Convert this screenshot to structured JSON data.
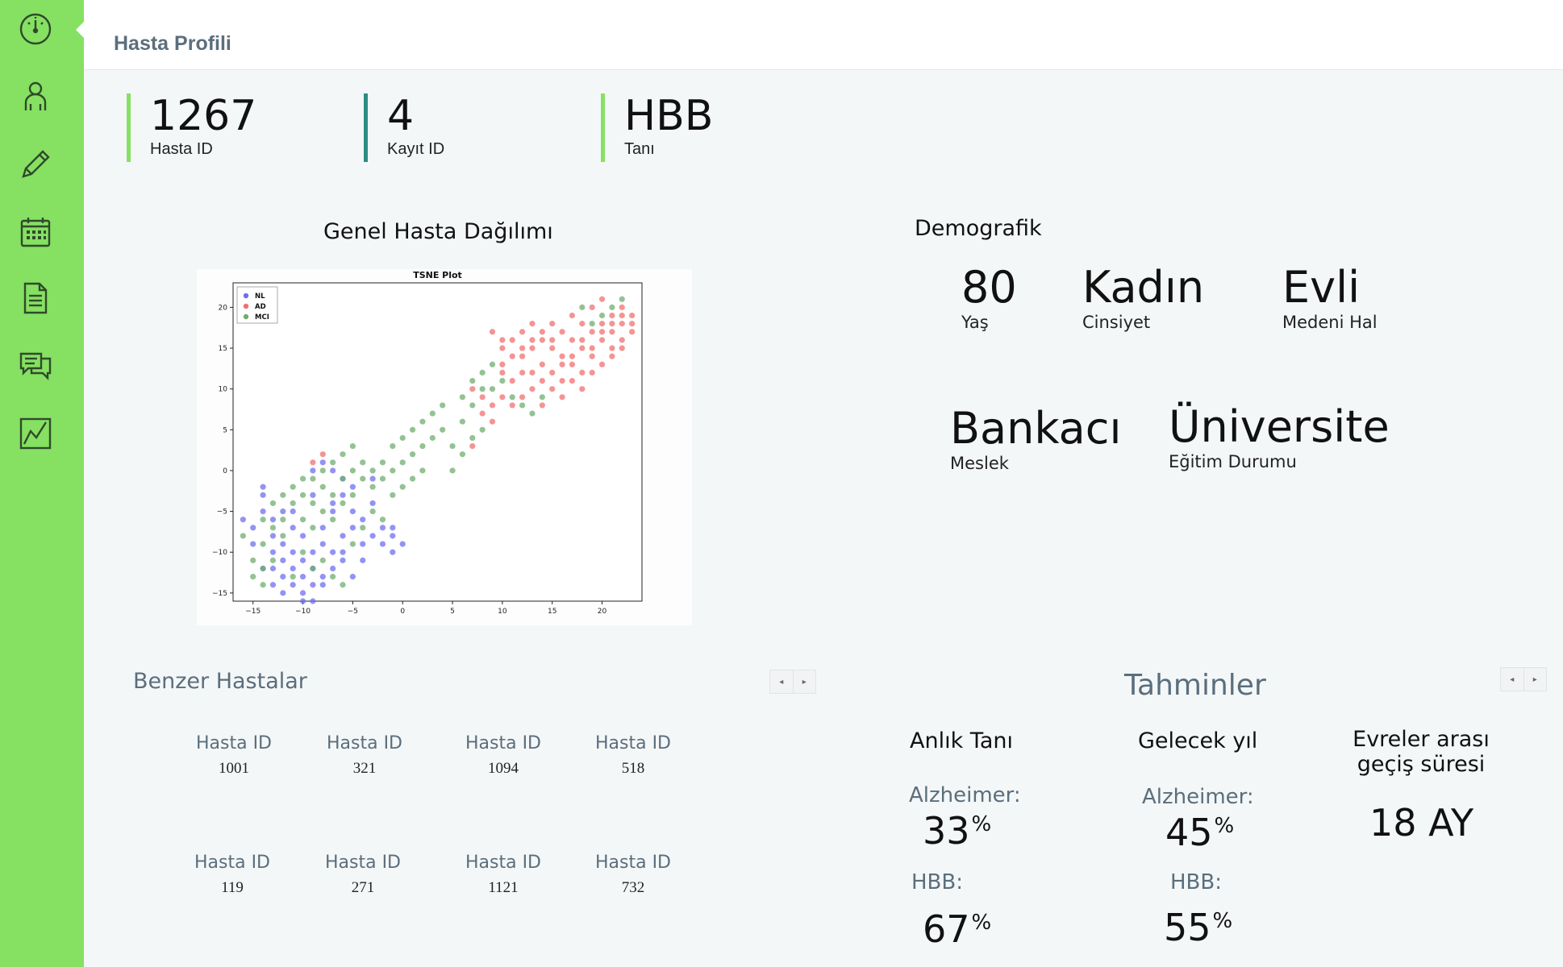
{
  "header": {
    "title": "Hasta Profili"
  },
  "sidebar": {
    "items": [
      {
        "icon": "dashboard-gauge-icon"
      },
      {
        "icon": "user-icon"
      },
      {
        "icon": "pencil-icon"
      },
      {
        "icon": "calendar-icon"
      },
      {
        "icon": "document-icon"
      },
      {
        "icon": "chat-icon"
      },
      {
        "icon": "chart-icon"
      }
    ],
    "active_index": 0
  },
  "stats": [
    {
      "value": "1267",
      "label": "Hasta ID"
    },
    {
      "value": "4",
      "label": "Kayıt ID"
    },
    {
      "value": "HBB",
      "label": "Tanı"
    }
  ],
  "distribution": {
    "title": "Genel Hasta Dağılımı"
  },
  "chart_data": {
    "type": "scatter",
    "title": "TSNE Plot",
    "xlabel": "",
    "ylabel": "",
    "xlim": [
      -17,
      24
    ],
    "ylim": [
      -16,
      23
    ],
    "xticks": [
      -15,
      -10,
      -5,
      0,
      5,
      10,
      15,
      20
    ],
    "yticks": [
      -15,
      -10,
      -5,
      0,
      5,
      10,
      15,
      20
    ],
    "legend_position": "top-left",
    "series": [
      {
        "name": "NL",
        "color": "#6f6ff0",
        "points": [
          [
            -15,
            -7
          ],
          [
            -14,
            -3
          ],
          [
            -14,
            -5
          ],
          [
            -13,
            -10
          ],
          [
            -13,
            -12
          ],
          [
            -13,
            -14
          ],
          [
            -12,
            -9
          ],
          [
            -12,
            -11
          ],
          [
            -12,
            -13
          ],
          [
            -11,
            -7
          ],
          [
            -11,
            -10
          ],
          [
            -11,
            -12
          ],
          [
            -11,
            -14
          ],
          [
            -10,
            -8
          ],
          [
            -10,
            -11
          ],
          [
            -10,
            -13
          ],
          [
            -10,
            -15
          ],
          [
            -9,
            -10
          ],
          [
            -9,
            -12
          ],
          [
            -9,
            -14
          ],
          [
            -8,
            -7
          ],
          [
            -8,
            -9
          ],
          [
            -8,
            -13
          ],
          [
            -7,
            -10
          ],
          [
            -7,
            -12
          ],
          [
            -7,
            -5
          ],
          [
            -6,
            -8
          ],
          [
            -6,
            -11
          ],
          [
            -6,
            -3
          ],
          [
            -5,
            -5
          ],
          [
            -5,
            -7
          ],
          [
            -5,
            -13
          ],
          [
            -4,
            -6
          ],
          [
            -4,
            -9
          ],
          [
            -3,
            -8
          ],
          [
            -3,
            -4
          ],
          [
            -2,
            -9
          ],
          [
            -1,
            -7
          ],
          [
            -1,
            -8
          ],
          [
            -7,
            0
          ],
          [
            -6,
            -1
          ],
          [
            -8,
            1
          ],
          [
            -9,
            0
          ],
          [
            -14,
            -2
          ],
          [
            -12,
            -5
          ],
          [
            -15,
            -9
          ],
          [
            -16,
            -6
          ],
          [
            -12,
            -15
          ],
          [
            -9,
            -16
          ],
          [
            -4,
            -11
          ],
          [
            -2,
            -7
          ],
          [
            0,
            -9
          ],
          [
            -1,
            -10
          ],
          [
            -13,
            -6
          ],
          [
            -11,
            -5
          ],
          [
            -9,
            -3
          ],
          [
            -7,
            -4
          ],
          [
            -5,
            -2
          ],
          [
            -3,
            -1
          ],
          [
            -6,
            -10
          ],
          [
            -8,
            -14
          ],
          [
            -10,
            -16
          ],
          [
            -14,
            -12
          ],
          [
            -13,
            -8
          ]
        ]
      },
      {
        "name": "AD",
        "color": "#f07070",
        "points": [
          [
            9,
            17
          ],
          [
            10,
            16
          ],
          [
            10,
            13
          ],
          [
            11,
            11
          ],
          [
            12,
            17
          ],
          [
            12,
            14
          ],
          [
            13,
            18
          ],
          [
            13,
            15
          ],
          [
            13,
            12
          ],
          [
            14,
            16
          ],
          [
            14,
            13
          ],
          [
            14,
            11
          ],
          [
            15,
            18
          ],
          [
            15,
            15
          ],
          [
            15,
            12
          ],
          [
            16,
            17
          ],
          [
            16,
            14
          ],
          [
            16,
            11
          ],
          [
            17,
            19
          ],
          [
            17,
            16
          ],
          [
            17,
            13
          ],
          [
            18,
            18
          ],
          [
            18,
            15
          ],
          [
            18,
            12
          ],
          [
            19,
            20
          ],
          [
            19,
            17
          ],
          [
            19,
            14
          ],
          [
            20,
            21
          ],
          [
            20,
            18
          ],
          [
            20,
            16
          ],
          [
            21,
            19
          ],
          [
            21,
            17
          ],
          [
            21,
            15
          ],
          [
            22,
            20
          ],
          [
            22,
            18
          ],
          [
            22,
            16
          ],
          [
            23,
            19
          ],
          [
            23,
            17
          ],
          [
            8,
            9
          ],
          [
            9,
            8
          ],
          [
            10,
            9
          ],
          [
            11,
            8
          ],
          [
            12,
            9
          ],
          [
            7,
            10
          ],
          [
            8,
            7
          ],
          [
            9,
            6
          ],
          [
            10,
            12
          ],
          [
            11,
            14
          ],
          [
            12,
            12
          ],
          [
            13,
            10
          ],
          [
            15,
            10
          ],
          [
            17,
            11
          ],
          [
            19,
            12
          ],
          [
            20,
            13
          ],
          [
            21,
            14
          ],
          [
            22,
            15
          ],
          [
            18,
            10
          ],
          [
            16,
            9
          ],
          [
            14,
            8
          ],
          [
            -8,
            2
          ],
          [
            -9,
            1
          ],
          [
            7,
            3
          ],
          [
            16,
            13
          ],
          [
            17,
            14
          ],
          [
            18,
            16
          ],
          [
            19,
            15
          ],
          [
            20,
            17
          ],
          [
            21,
            18
          ],
          [
            22,
            19
          ],
          [
            23,
            18
          ],
          [
            15,
            16
          ],
          [
            14,
            17
          ],
          [
            13,
            16
          ],
          [
            12,
            15
          ],
          [
            11,
            16
          ],
          [
            10,
            15
          ]
        ]
      },
      {
        "name": "MCI",
        "color": "#6fae6f",
        "points": [
          [
            -16,
            -8
          ],
          [
            -15,
            -11
          ],
          [
            -15,
            -13
          ],
          [
            -14,
            -6
          ],
          [
            -14,
            -9
          ],
          [
            -14,
            -12
          ],
          [
            -13,
            -4
          ],
          [
            -13,
            -7
          ],
          [
            -12,
            -3
          ],
          [
            -12,
            -6
          ],
          [
            -11,
            -2
          ],
          [
            -11,
            -4
          ],
          [
            -10,
            -1
          ],
          [
            -10,
            -3
          ],
          [
            -10,
            -6
          ],
          [
            -9,
            -1
          ],
          [
            -9,
            -4
          ],
          [
            -9,
            -7
          ],
          [
            -8,
            0
          ],
          [
            -8,
            -2
          ],
          [
            -8,
            -5
          ],
          [
            -7,
            1
          ],
          [
            -7,
            -3
          ],
          [
            -7,
            -6
          ],
          [
            -6,
            2
          ],
          [
            -6,
            -1
          ],
          [
            -6,
            -4
          ],
          [
            -5,
            3
          ],
          [
            -5,
            0
          ],
          [
            -5,
            -3
          ],
          [
            -4,
            1
          ],
          [
            -4,
            -1
          ],
          [
            -3,
            0
          ],
          [
            -3,
            -2
          ],
          [
            -2,
            1
          ],
          [
            -2,
            -1
          ],
          [
            -1,
            3
          ],
          [
            -1,
            0
          ],
          [
            0,
            4
          ],
          [
            0,
            1
          ],
          [
            1,
            2
          ],
          [
            1,
            5
          ],
          [
            2,
            3
          ],
          [
            2,
            6
          ],
          [
            3,
            4
          ],
          [
            3,
            7
          ],
          [
            4,
            5
          ],
          [
            4,
            8
          ],
          [
            5,
            3
          ],
          [
            6,
            9
          ],
          [
            6,
            6
          ],
          [
            7,
            11
          ],
          [
            7,
            8
          ],
          [
            8,
            12
          ],
          [
            8,
            10
          ],
          [
            9,
            13
          ],
          [
            9,
            10
          ],
          [
            10,
            11
          ],
          [
            11,
            9
          ],
          [
            12,
            8
          ],
          [
            13,
            7
          ],
          [
            14,
            9
          ],
          [
            -10,
            -10
          ],
          [
            -9,
            -12
          ],
          [
            -8,
            -11
          ],
          [
            -7,
            -13
          ],
          [
            -6,
            -14
          ],
          [
            -5,
            -9
          ],
          [
            -4,
            -7
          ],
          [
            -3,
            -5
          ],
          [
            -2,
            -6
          ],
          [
            -1,
            -3
          ],
          [
            0,
            -2
          ],
          [
            1,
            -1
          ],
          [
            2,
            0
          ],
          [
            -12,
            -8
          ],
          [
            -13,
            -11
          ],
          [
            -14,
            -14
          ],
          [
            -11,
            -13
          ],
          [
            18,
            20
          ],
          [
            19,
            18
          ],
          [
            20,
            19
          ],
          [
            21,
            20
          ],
          [
            22,
            21
          ],
          [
            5,
            0
          ],
          [
            6,
            2
          ],
          [
            7,
            4
          ],
          [
            8,
            5
          ]
        ]
      }
    ]
  },
  "demographics": {
    "title": "Demografik",
    "fields": [
      {
        "value": "80",
        "label": "Yaş"
      },
      {
        "value": "Kadın",
        "label": "Cinsiyet"
      },
      {
        "value": "Evli",
        "label": "Medeni Hal"
      },
      {
        "value": "Bankacı",
        "label": "Meslek"
      },
      {
        "value": "Üniversite",
        "label": "Eğitim Durumu"
      }
    ]
  },
  "similar": {
    "title": "Benzer Hastalar",
    "patients": [
      {
        "label": "Hasta ID",
        "id": "1001"
      },
      {
        "label": "Hasta ID",
        "id": "321"
      },
      {
        "label": "Hasta ID",
        "id": "1094"
      },
      {
        "label": "Hasta ID",
        "id": "518"
      },
      {
        "label": "Hasta ID",
        "id": "119"
      },
      {
        "label": "Hasta ID",
        "id": "271"
      },
      {
        "label": "Hasta ID",
        "id": "1121"
      },
      {
        "label": "Hasta ID",
        "id": "732"
      }
    ]
  },
  "predictions": {
    "title": "Tahminler",
    "current": {
      "heading": "Anlık Tanı",
      "alz_label": "Alzheimer:",
      "alz_value": "33",
      "hbb_label": "HBB:",
      "hbb_value": "67"
    },
    "next_year": {
      "heading": "Gelecek yıl",
      "alz_label": "Alzheimer:",
      "alz_value": "45",
      "hbb_label": "HBB:",
      "hbb_value": "55"
    },
    "transition": {
      "heading_line1": "Evreler arası",
      "heading_line2": "geçiş süresi",
      "value": "18 AY"
    },
    "percent_sign": "%"
  },
  "pager": {
    "prev": "◂",
    "next": "▸"
  },
  "colors": {
    "accent": "#86e062",
    "teal": "#2e8b85",
    "muted": "#5b6e7c"
  }
}
